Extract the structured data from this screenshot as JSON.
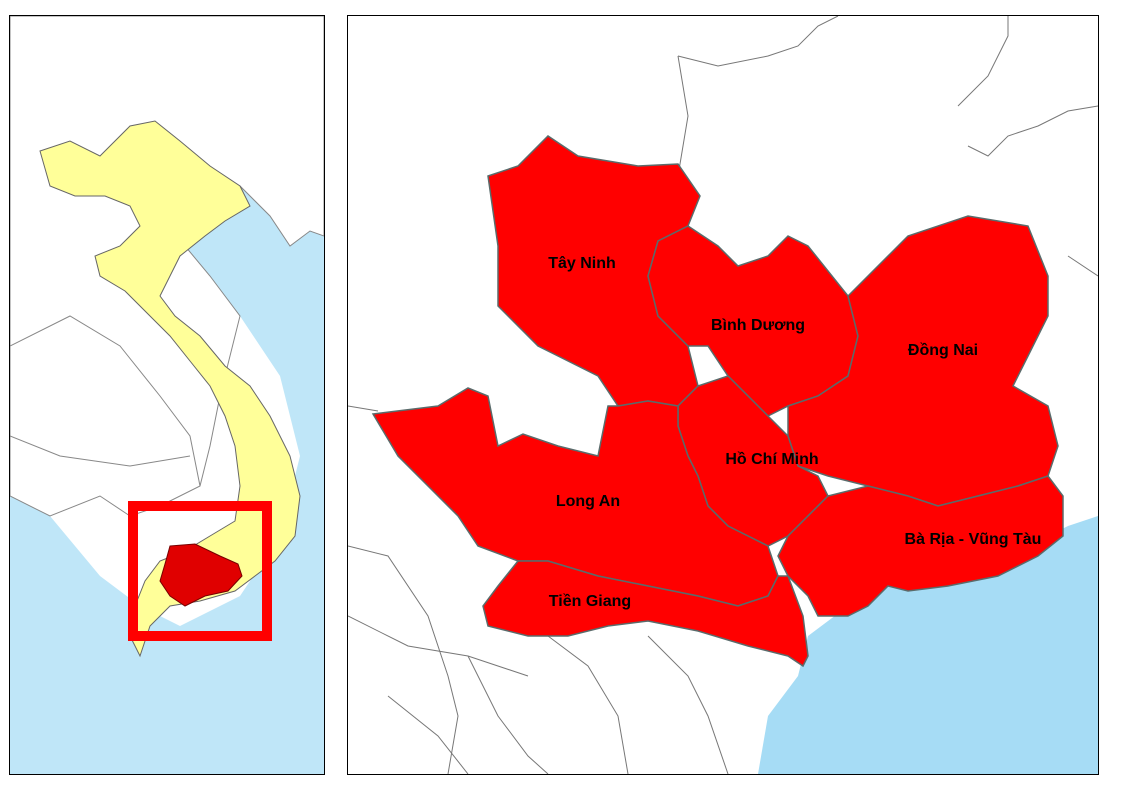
{
  "map": {
    "colors": {
      "sea": "#a6dcf5",
      "highlight": "#ff0000",
      "vietnam": "#ffff99",
      "land": "#ffffff",
      "boundary": "#555555",
      "inset_frame": "#ff0000"
    },
    "overview": {
      "description_icon": "locator-map"
    },
    "detail": {
      "provinces": [
        {
          "name": "Tây Ninh"
        },
        {
          "name": "Bình Dương"
        },
        {
          "name": "Đồng Nai"
        },
        {
          "name": "Hồ Chí Minh"
        },
        {
          "name": "Long An"
        },
        {
          "name": "Bà Rịa - Vũng Tàu"
        },
        {
          "name": "Tiền Giang"
        }
      ]
    }
  }
}
